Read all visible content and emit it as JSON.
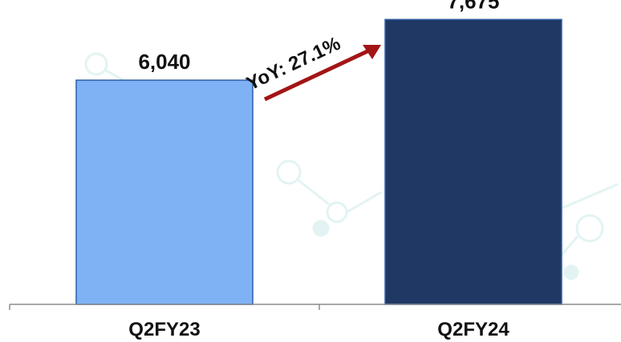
{
  "chart_data": {
    "type": "bar",
    "categories": [
      "Q2FY23",
      "Q2FY24"
    ],
    "values": [
      6040,
      7675
    ],
    "value_labels": [
      "6,040",
      "7,675"
    ],
    "ylim": [
      0,
      8200
    ],
    "grid": false,
    "colors": [
      "#7fb2f5",
      "#1f3864"
    ],
    "edge_color": "#2e5fa8",
    "annotation": {
      "text": "YoY: 27.1%",
      "color": "#a31515"
    },
    "title": "",
    "xlabel": "",
    "ylabel": ""
  }
}
